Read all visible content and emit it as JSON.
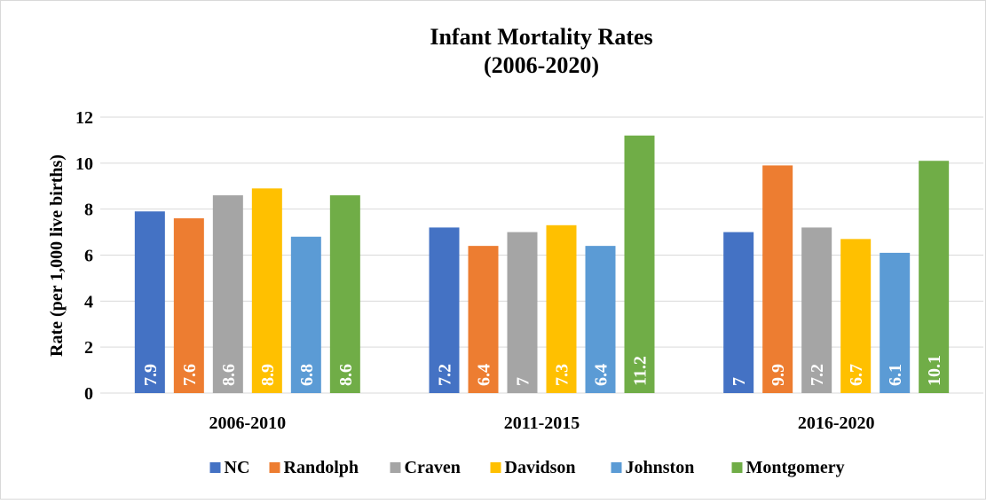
{
  "chart_data": {
    "type": "bar",
    "title": "Infant Mortality Rates",
    "subtitle": "(2006-2020)",
    "y_label": "Rate (per 1,000 live births)",
    "categories": [
      "2006-2010",
      "2011-2015",
      "2016-2020"
    ],
    "series": [
      {
        "name": "NC",
        "color": "#4472c4",
        "values": [
          7.9,
          7.2,
          7
        ]
      },
      {
        "name": "Randolph",
        "color": "#ed7d31",
        "values": [
          7.6,
          6.4,
          9.9
        ]
      },
      {
        "name": "Craven",
        "color": "#a5a5a5",
        "values": [
          8.6,
          7,
          7.2
        ]
      },
      {
        "name": "Davidson",
        "color": "#ffc000",
        "values": [
          8.9,
          7.3,
          6.7
        ]
      },
      {
        "name": "Johnston",
        "color": "#5b9bd5",
        "values": [
          6.8,
          6.4,
          6.1
        ]
      },
      {
        "name": "Montgomery",
        "color": "#70ad47",
        "values": [
          8.6,
          11.2,
          10.1
        ]
      }
    ],
    "ylim": [
      0,
      12
    ],
    "yticks": [
      0,
      2,
      4,
      6,
      8,
      10,
      12
    ],
    "grid": true,
    "legend": "bottom"
  }
}
